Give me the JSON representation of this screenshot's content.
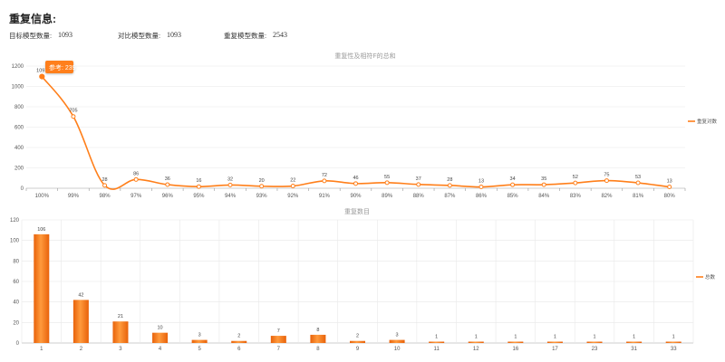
{
  "header": {
    "title": "重复信息:",
    "stats": [
      {
        "label": "目标模型数量:",
        "value": "1093"
      },
      {
        "label": "对比模型数量:",
        "value": "1093"
      },
      {
        "label": "重复模型数量:",
        "value": "2543"
      }
    ]
  },
  "colors": {
    "accent": "#ff7f1a",
    "bar_dark": "#e8620a",
    "grid": "#e8e8e8"
  },
  "chart_data": [
    {
      "type": "line",
      "title": "重复性及相符F的总和",
      "categories": [
        "100%",
        "99%",
        "98%",
        "97%",
        "96%",
        "95%",
        "94%",
        "93%",
        "92%",
        "91%",
        "90%",
        "89%",
        "88%",
        "87%",
        "86%",
        "85%",
        "84%",
        "83%",
        "82%",
        "81%",
        "80%"
      ],
      "series": [
        {
          "name": "重复对数",
          "values": [
            1097,
            705,
            28,
            86,
            36,
            16,
            32,
            20,
            22,
            72,
            46,
            55,
            37,
            28,
            13,
            34,
            35,
            52,
            75,
            53,
            13
          ]
        }
      ],
      "ylim": [
        0,
        1200
      ],
      "yticks": [
        0,
        200,
        400,
        600,
        800,
        1000,
        1200
      ],
      "grid": true,
      "legend": "right",
      "tooltip": "参考: 239"
    },
    {
      "type": "bar",
      "title": "重复数目",
      "categories": [
        "1",
        "2",
        "3",
        "4",
        "5",
        "6",
        "7",
        "8",
        "9",
        "10",
        "11",
        "12",
        "16",
        "17",
        "23",
        "31",
        "33"
      ],
      "series": [
        {
          "name": "总数",
          "values": [
            106,
            42,
            21,
            10,
            3,
            2,
            7,
            8,
            2,
            3,
            1,
            1,
            1,
            1,
            1,
            1,
            1
          ]
        }
      ],
      "ylim": [
        0,
        120
      ],
      "yticks": [
        0,
        20,
        40,
        60,
        80,
        100,
        120
      ],
      "grid": true,
      "legend": "right"
    }
  ]
}
